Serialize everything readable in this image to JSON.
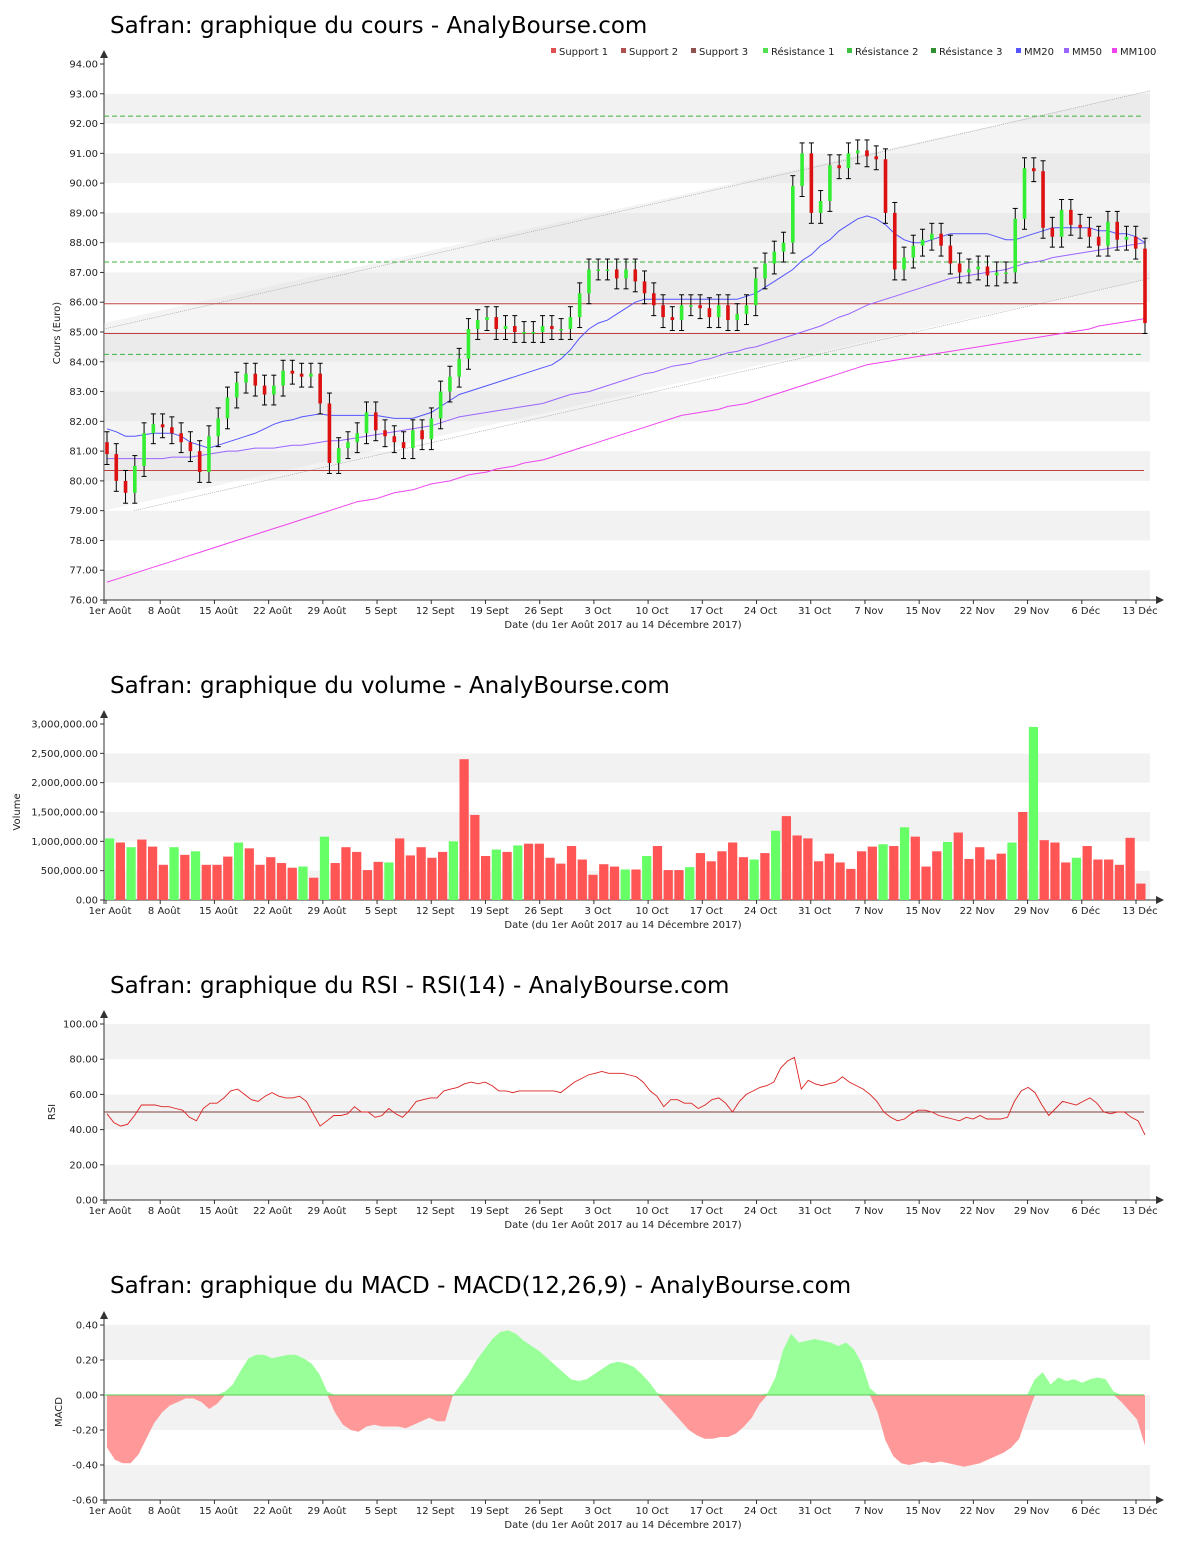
{
  "chart_data": [
    {
      "type": "candlestick",
      "title": "Safran: graphique du cours - AnalyBourse.com",
      "xlabel": "Date (du 1er Août 2017 au 14 Décembre 2017)",
      "ylabel": "Cours (Euro)",
      "ylim": [
        76,
        94
      ],
      "yticks": [
        "76.00",
        "77.00",
        "78.00",
        "79.00",
        "80.00",
        "81.00",
        "82.00",
        "83.00",
        "84.00",
        "85.00",
        "86.00",
        "87.00",
        "88.00",
        "89.00",
        "90.00",
        "91.00",
        "92.00",
        "93.00",
        "94.00"
      ],
      "xticks": [
        "1er Août",
        "8 Août",
        "15 Août",
        "22 Août",
        "29 Août",
        "5 Sept",
        "12 Sept",
        "19 Sept",
        "26 Sept",
        "3 Oct",
        "10 Oct",
        "17 Oct",
        "24 Oct",
        "31 Oct",
        "7 Nov",
        "15 Nov",
        "22 Nov",
        "29 Nov",
        "6 Déc",
        "13 Déc"
      ],
      "legend": [
        "Support 1",
        "Support 2",
        "Support 3",
        "Résistance 1",
        "Résistance 2",
        "Résistance 3",
        "MM20",
        "MM50",
        "MM100"
      ],
      "legend_colors": [
        "#e05050",
        "#b05050",
        "#905050",
        "#50e050",
        "#40c040",
        "#309030",
        "#5555ff",
        "#9966ff",
        "#ee44ee"
      ],
      "support_levels": [
        80.35,
        84.95,
        85.95
      ],
      "resistance_levels": [
        84.25,
        87.35,
        92.25
      ],
      "close": [
        80.9,
        80.0,
        79.6,
        80.5,
        81.6,
        81.9,
        81.8,
        81.6,
        81.3,
        81.0,
        80.3,
        81.5,
        82.1,
        82.8,
        83.3,
        83.6,
        83.2,
        82.9,
        83.2,
        83.7,
        83.6,
        83.5,
        83.6,
        82.6,
        80.6,
        81.1,
        81.3,
        81.6,
        82.3,
        81.7,
        81.5,
        81.3,
        81.1,
        81.7,
        81.4,
        82.1,
        83.0,
        83.5,
        84.1,
        85.1,
        85.4,
        85.5,
        85.1,
        85.2,
        85.0,
        85.0,
        85.0,
        85.2,
        85.1,
        85.1,
        85.5,
        86.3,
        87.1,
        87.1,
        87.1,
        86.8,
        87.1,
        86.7,
        86.3,
        85.9,
        85.5,
        85.4,
        85.9,
        85.9,
        85.8,
        85.5,
        85.9,
        85.4,
        85.6,
        85.9,
        86.8,
        87.3,
        87.7,
        88.0,
        89.9,
        91.0,
        89.0,
        89.4,
        90.6,
        90.5,
        91.0,
        91.1,
        90.9,
        90.8,
        89.0,
        87.1,
        87.5,
        87.9,
        88.1,
        88.3,
        87.9,
        87.3,
        87.0,
        87.1,
        87.2,
        86.9,
        87.0,
        87.0,
        88.8,
        90.5,
        90.4,
        88.5,
        88.2,
        89.1,
        88.6,
        88.5,
        88.2,
        87.9,
        88.7,
        88.1,
        88.2,
        87.8,
        85.3
      ],
      "mm20": [
        81.75,
        81.65,
        81.5,
        81.5,
        81.55,
        81.6,
        81.6,
        81.6,
        81.5,
        81.3,
        81.2,
        81.1,
        81.2,
        81.3,
        81.4,
        81.5,
        81.6,
        81.75,
        81.9,
        82.0,
        82.05,
        82.15,
        82.2,
        82.25,
        82.2,
        82.2,
        82.2,
        82.2,
        82.2,
        82.2,
        82.15,
        82.1,
        82.1,
        82.1,
        82.2,
        82.3,
        82.5,
        82.7,
        82.9,
        83.0,
        83.1,
        83.2,
        83.3,
        83.4,
        83.5,
        83.6,
        83.7,
        83.8,
        83.9,
        84.1,
        84.4,
        84.8,
        85.1,
        85.3,
        85.4,
        85.6,
        85.8,
        86.0,
        86.1,
        86.1,
        86.1,
        86.1,
        86.1,
        86.1,
        86.1,
        86.1,
        86.1,
        86.1,
        86.1,
        86.2,
        86.3,
        86.5,
        86.7,
        86.9,
        87.1,
        87.4,
        87.6,
        87.9,
        88.1,
        88.4,
        88.6,
        88.8,
        88.9,
        88.8,
        88.6,
        88.3,
        88.1,
        88.0,
        88.0,
        88.1,
        88.2,
        88.3,
        88.3,
        88.3,
        88.3,
        88.3,
        88.2,
        88.1,
        88.1,
        88.2,
        88.3,
        88.4,
        88.5,
        88.5,
        88.5,
        88.5,
        88.5,
        88.4,
        88.4,
        88.3,
        88.3,
        88.2,
        88.0
      ],
      "mm50": [
        80.75,
        80.75,
        80.75,
        80.75,
        80.75,
        80.75,
        80.75,
        80.8,
        80.8,
        80.8,
        80.85,
        80.9,
        80.95,
        81.0,
        81.0,
        81.05,
        81.1,
        81.1,
        81.1,
        81.15,
        81.2,
        81.2,
        81.25,
        81.3,
        81.35,
        81.35,
        81.4,
        81.45,
        81.5,
        81.55,
        81.6,
        81.65,
        81.7,
        81.75,
        81.8,
        81.85,
        81.95,
        82.05,
        82.15,
        82.2,
        82.25,
        82.3,
        82.35,
        82.4,
        82.45,
        82.5,
        82.55,
        82.6,
        82.7,
        82.8,
        82.9,
        82.95,
        83.0,
        83.1,
        83.2,
        83.3,
        83.4,
        83.5,
        83.6,
        83.65,
        83.75,
        83.85,
        83.9,
        83.95,
        84.05,
        84.1,
        84.2,
        84.3,
        84.35,
        84.45,
        84.5,
        84.6,
        84.7,
        84.8,
        84.9,
        85.0,
        85.1,
        85.2,
        85.35,
        85.5,
        85.6,
        85.75,
        85.9,
        86.0,
        86.1,
        86.2,
        86.3,
        86.4,
        86.5,
        86.6,
        86.7,
        86.8,
        86.85,
        86.9,
        86.95,
        87.0,
        87.05,
        87.1,
        87.2,
        87.3,
        87.35,
        87.4,
        87.5,
        87.55,
        87.6,
        87.65,
        87.7,
        87.75,
        87.8,
        87.85,
        87.9,
        87.95,
        88.0
      ],
      "mm100": [
        76.6,
        76.7,
        76.8,
        76.9,
        77.0,
        77.1,
        77.2,
        77.3,
        77.4,
        77.5,
        77.6,
        77.7,
        77.8,
        77.9,
        78.0,
        78.1,
        78.2,
        78.3,
        78.4,
        78.5,
        78.6,
        78.7,
        78.8,
        78.9,
        79.0,
        79.1,
        79.2,
        79.3,
        79.35,
        79.4,
        79.5,
        79.6,
        79.65,
        79.7,
        79.8,
        79.9,
        79.95,
        80.0,
        80.1,
        80.2,
        80.25,
        80.3,
        80.4,
        80.45,
        80.5,
        80.6,
        80.65,
        80.7,
        80.8,
        80.9,
        81.0,
        81.1,
        81.2,
        81.3,
        81.4,
        81.5,
        81.6,
        81.7,
        81.8,
        81.9,
        82.0,
        82.1,
        82.2,
        82.25,
        82.3,
        82.35,
        82.4,
        82.5,
        82.55,
        82.6,
        82.7,
        82.8,
        82.9,
        83.0,
        83.1,
        83.2,
        83.3,
        83.4,
        83.5,
        83.6,
        83.7,
        83.8,
        83.9,
        83.95,
        84.0,
        84.05,
        84.1,
        84.15,
        84.2,
        84.25,
        84.3,
        84.35,
        84.4,
        84.45,
        84.5,
        84.55,
        84.6,
        84.65,
        84.7,
        84.75,
        84.8,
        84.85,
        84.9,
        84.95,
        85.0,
        85.05,
        85.1,
        85.2,
        85.25,
        85.3,
        85.35,
        85.4,
        85.45
      ]
    },
    {
      "type": "bar",
      "title": "Safran: graphique du volume - AnalyBourse.com",
      "xlabel": "Date (du 1er Août 2017 au 14 Décembre 2017)",
      "ylabel": "Volume",
      "ylim": [
        0,
        3000000
      ],
      "yticks": [
        "0.00",
        "500,000.00",
        "1,000,000.00",
        "1,500,000.00",
        "2,000,000.00",
        "2,500,000.00",
        "3,000,000.00"
      ],
      "xticks": [
        "1er Août",
        "8 Août",
        "15 Août",
        "22 Août",
        "29 Août",
        "5 Sept",
        "12 Sept",
        "19 Sept",
        "26 Sept",
        "3 Oct",
        "10 Oct",
        "17 Oct",
        "24 Oct",
        "31 Oct",
        "7 Nov",
        "15 Nov",
        "22 Nov",
        "29 Nov",
        "6 Déc",
        "13 Déc"
      ],
      "values": [
        1050000,
        980000,
        900000,
        1030000,
        910000,
        600000,
        900000,
        770000,
        830000,
        600000,
        600000,
        740000,
        980000,
        880000,
        600000,
        730000,
        630000,
        550000,
        570000,
        380000,
        1080000,
        630000,
        900000,
        820000,
        510000,
        650000,
        640000,
        1050000,
        760000,
        900000,
        720000,
        820000,
        1000000,
        2400000,
        1450000,
        750000,
        860000,
        820000,
        930000,
        960000,
        960000,
        720000,
        620000,
        920000,
        690000,
        430000,
        610000,
        570000,
        520000,
        520000,
        750000,
        920000,
        510000,
        510000,
        560000,
        800000,
        660000,
        830000,
        980000,
        730000,
        690000,
        800000,
        1180000,
        1430000,
        1100000,
        1050000,
        660000,
        790000,
        640000,
        530000,
        830000,
        910000,
        950000,
        920000,
        1240000,
        1080000,
        570000,
        830000,
        990000,
        1150000,
        700000,
        900000,
        690000,
        790000,
        980000,
        1500000,
        2950000,
        1020000,
        980000,
        640000,
        720000,
        920000,
        690000,
        690000,
        600000,
        1060000,
        280000
      ],
      "colors_up": "#66ff66",
      "colors_down": "#ff5555"
    },
    {
      "type": "line",
      "title": "Safran: graphique du RSI - RSI(14) - AnalyBourse.com",
      "xlabel": "Date (du 1er Août 2017 au 14 Décembre 2017)",
      "ylabel": "RSI",
      "ylim": [
        0,
        100
      ],
      "yticks": [
        "0.00",
        "20.00",
        "40.00",
        "60.00",
        "80.00",
        "100.00"
      ],
      "xticks": [
        "1er Août",
        "8 Août",
        "15 Août",
        "22 Août",
        "29 Août",
        "5 Sept",
        "12 Sept",
        "19 Sept",
        "26 Sept",
        "3 Oct",
        "10 Oct",
        "17 Oct",
        "24 Oct",
        "31 Oct",
        "7 Nov",
        "15 Nov",
        "22 Nov",
        "29 Nov",
        "6 Déc",
        "13 Déc"
      ],
      "reference": 50,
      "values": [
        49,
        44,
        42,
        43,
        48,
        54,
        54,
        54,
        53,
        53,
        52,
        51,
        47,
        45,
        52,
        55,
        55,
        58,
        62,
        63,
        60,
        57,
        56,
        59,
        61,
        59,
        58,
        58,
        59,
        56,
        49,
        42,
        45,
        48,
        48,
        49,
        53,
        50,
        50,
        47,
        48,
        52,
        49,
        47,
        51,
        56,
        57,
        58,
        58,
        62,
        63,
        64,
        66,
        67,
        66,
        67,
        65,
        62,
        62,
        61,
        62,
        62,
        62,
        62,
        62,
        62,
        61,
        64,
        67,
        69,
        71,
        72,
        73,
        72,
        72,
        72,
        71,
        70,
        67,
        62,
        59,
        53,
        57,
        57,
        55,
        55,
        52,
        54,
        57,
        58,
        55,
        50,
        56,
        60,
        62,
        64,
        65,
        67,
        75,
        79,
        81,
        63,
        68,
        66,
        65,
        66,
        67,
        70,
        67,
        65,
        63,
        60,
        56,
        50,
        47,
        45,
        46,
        49,
        51,
        51,
        50,
        48,
        47,
        46,
        45,
        47,
        46,
        48,
        46,
        46,
        46,
        47,
        56,
        62,
        64,
        61,
        54,
        48,
        52,
        56,
        55,
        54,
        56,
        58,
        55,
        50,
        49,
        50,
        50,
        47,
        45,
        37
      ]
    },
    {
      "type": "area",
      "title": "Safran: graphique du MACD - MACD(12,26,9) - AnalyBourse.com",
      "xlabel": "Date (du 1er Août 2017 au 14 Décembre 2017)",
      "ylabel": "MACD",
      "ylim": [
        -0.6,
        0.4
      ],
      "yticks": [
        "-0.60",
        "-0.40",
        "-0.20",
        "0.00",
        "0.20",
        "0.40"
      ],
      "xticks": [
        "1er Août",
        "8 Août",
        "15 Août",
        "22 Août",
        "29 Août",
        "5 Sept",
        "12 Sept",
        "19 Sept",
        "26 Sept",
        "3 Oct",
        "10 Oct",
        "17 Oct",
        "24 Oct",
        "31 Oct",
        "7 Nov",
        "15 Nov",
        "22 Nov",
        "29 Nov",
        "6 Déc",
        "13 Déc"
      ],
      "values": [
        -0.3,
        -0.37,
        -0.39,
        -0.39,
        -0.34,
        -0.25,
        -0.16,
        -0.1,
        -0.06,
        -0.04,
        -0.02,
        -0.02,
        -0.04,
        -0.08,
        -0.05,
        0.02,
        0.06,
        0.14,
        0.21,
        0.23,
        0.23,
        0.21,
        0.22,
        0.23,
        0.23,
        0.21,
        0.18,
        0.12,
        0.02,
        -0.1,
        -0.17,
        -0.2,
        -0.21,
        -0.18,
        -0.17,
        -0.18,
        -0.18,
        -0.18,
        -0.19,
        -0.17,
        -0.15,
        -0.13,
        -0.15,
        -0.15,
        0.0,
        0.06,
        0.12,
        0.2,
        0.26,
        0.32,
        0.36,
        0.37,
        0.35,
        0.31,
        0.28,
        0.25,
        0.21,
        0.17,
        0.13,
        0.09,
        0.08,
        0.09,
        0.12,
        0.15,
        0.18,
        0.19,
        0.18,
        0.16,
        0.12,
        0.07,
        0.01,
        -0.05,
        -0.1,
        -0.15,
        -0.2,
        -0.23,
        -0.25,
        -0.25,
        -0.24,
        -0.24,
        -0.22,
        -0.18,
        -0.13,
        -0.05,
        0.01,
        0.1,
        0.26,
        0.35,
        0.3,
        0.31,
        0.32,
        0.31,
        0.3,
        0.28,
        0.3,
        0.26,
        0.18,
        0.04,
        -0.1,
        -0.26,
        -0.35,
        -0.39,
        -0.4,
        -0.39,
        -0.38,
        -0.39,
        -0.38,
        -0.39,
        -0.4,
        -0.41,
        -0.4,
        -0.39,
        -0.37,
        -0.35,
        -0.33,
        -0.3,
        -0.25,
        -0.12,
        0.09,
        0.13,
        0.06,
        0.1,
        0.08,
        0.09,
        0.07,
        0.09,
        0.1,
        0.09,
        0.02,
        -0.04,
        -0.09,
        -0.14,
        -0.29
      ],
      "color_pos": "#99ff99",
      "color_neg": "#ff9999"
    }
  ]
}
